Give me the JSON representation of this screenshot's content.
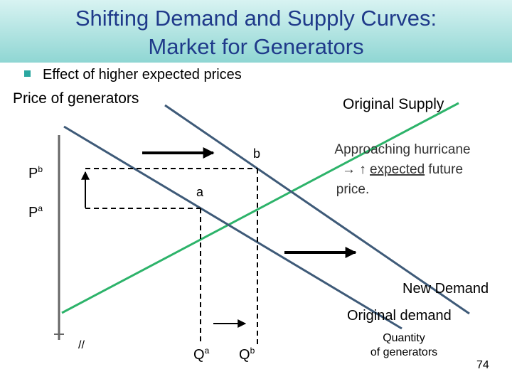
{
  "header": {
    "title_line1": "Shifting Demand and Supply Curves:",
    "title_line2": "Market for Generators"
  },
  "bullet": "Effect of higher expected prices",
  "axes": {
    "y_label": "Price of generators",
    "x_label_line1": "Quantity",
    "x_label_line2": "of generators",
    "break": "//"
  },
  "curves": {
    "original_supply": "Original Supply",
    "new_demand": "New Demand",
    "original_demand": "Original demand"
  },
  "points": {
    "a": "a",
    "b": "b"
  },
  "prices": {
    "pb": {
      "main": "P",
      "sup": "b"
    },
    "pa": {
      "main": "P",
      "sup": "a"
    }
  },
  "quantities": {
    "qa": {
      "main": "Q",
      "sup": "a"
    },
    "qb": {
      "main": "Q",
      "sup": "b"
    }
  },
  "note": {
    "line1": "Approaching hurricane",
    "line2_prefix": "→ ↑ ",
    "line2_underlined": "expected",
    "line2_suffix": " future",
    "line3": "price."
  },
  "page_number": "74"
}
